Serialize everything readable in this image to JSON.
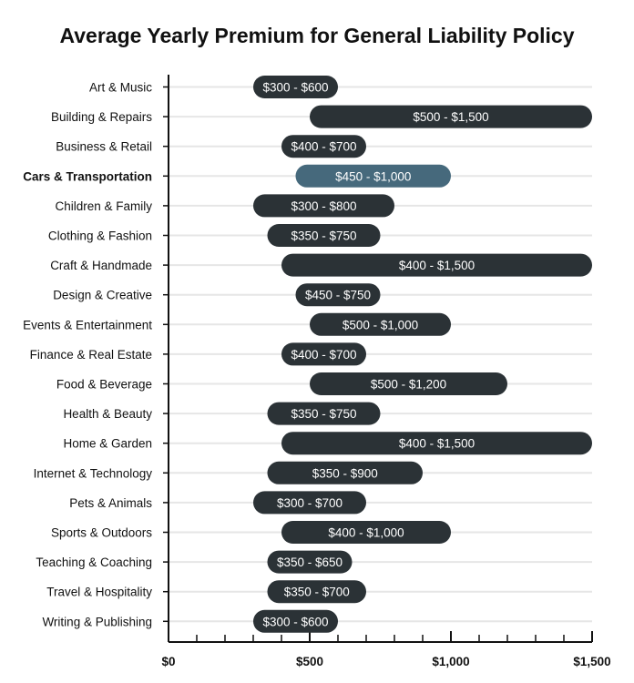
{
  "chart_data": {
    "type": "bar",
    "orientation": "horizontal-range",
    "title": "Average Yearly Premium for General Liability Policy",
    "xlim": [
      0,
      1500
    ],
    "xticks": [
      0,
      500,
      1000,
      1500
    ],
    "xtick_labels": [
      "$0",
      "$500",
      "$1,000",
      "$1,500"
    ],
    "grid": true,
    "bar_color": "#2b3236",
    "highlight_color": "#46697c",
    "highlight_category": "Cars & Transportation",
    "categories": [
      "Art & Music",
      "Building & Repairs",
      "Business & Retail",
      "Cars & Transportation",
      "Children & Family",
      "Clothing & Fashion",
      "Craft & Handmade",
      "Design & Creative",
      "Events & Entertainment",
      "Finance & Real Estate",
      "Food & Beverage",
      "Health & Beauty",
      "Home & Garden",
      "Internet & Technology",
      "Pets & Animals",
      "Sports & Outdoors",
      "Teaching & Coaching",
      "Travel & Hospitality",
      "Writing & Publishing"
    ],
    "ranges": [
      [
        300,
        600
      ],
      [
        500,
        1500
      ],
      [
        400,
        700
      ],
      [
        450,
        1000
      ],
      [
        300,
        800
      ],
      [
        350,
        750
      ],
      [
        400,
        1500
      ],
      [
        450,
        750
      ],
      [
        500,
        1000
      ],
      [
        400,
        700
      ],
      [
        500,
        1200
      ],
      [
        350,
        750
      ],
      [
        400,
        1500
      ],
      [
        350,
        900
      ],
      [
        300,
        700
      ],
      [
        400,
        1000
      ],
      [
        350,
        650
      ],
      [
        350,
        700
      ],
      [
        300,
        600
      ]
    ],
    "range_labels": [
      "$300 - $600",
      "$500 - $1,500",
      "$400 - $700",
      "$450 - $1,000",
      "$300 - $800",
      "$350 - $750",
      "$400 - $1,500",
      "$450 - $750",
      "$500 - $1,000",
      "$400 - $700",
      "$500 - $1,200",
      "$350 - $750",
      "$400 - $1,500",
      "$350 - $900",
      "$300 - $700",
      "$400 - $1,000",
      "$350 - $650",
      "$350 - $700",
      "$300 - $600"
    ]
  }
}
